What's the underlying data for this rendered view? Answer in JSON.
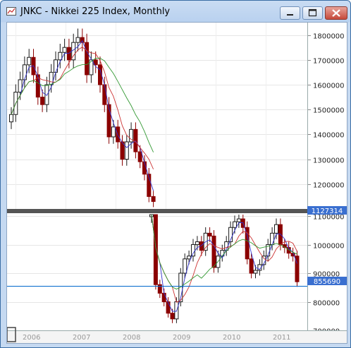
{
  "window": {
    "title": "JNKC - Nikkei 225 Index, Monthly",
    "accent": "#c5d9f1"
  },
  "chart_data": [
    {
      "type": "candlestick",
      "title": "",
      "ylim": [
        1100000,
        1850000
      ],
      "y_ticks": [
        "1800000",
        "1700000",
        "1600000",
        "1500000",
        "1400000",
        "1300000",
        "1200000"
      ],
      "price_marker": "1127314",
      "x_ticks": [
        "2006",
        "2007",
        "2008",
        "2009",
        "2010",
        "2011"
      ],
      "colors": {
        "up": "#1a1a1a",
        "down": "#8b0000",
        "ma_fast": "#3333cc",
        "ma_mid": "#cc3333",
        "ma_slow": "#339933",
        "hline": "#0066cc"
      },
      "candles_close": [
        1480000,
        1570000,
        1620000,
        1680000,
        1710000,
        1640000,
        1550000,
        1520000,
        1600000,
        1650000,
        1700000,
        1730000,
        1750000,
        1700000,
        1770000,
        1790000,
        1770000,
        1640000,
        1700000,
        1680000,
        1600000,
        1520000,
        1390000,
        1430000,
        1370000,
        1300000,
        1370000,
        1420000,
        1330000,
        1290000,
        1240000,
        1150000,
        1130000
      ]
    },
    {
      "type": "candlestick",
      "title": "",
      "ylim": [
        700000,
        1110000
      ],
      "y_ticks": [
        "1100000",
        "1000000",
        "900000",
        "800000",
        "700000"
      ],
      "price_marker": "855690",
      "hline_value": 855690,
      "candles_close": [
        1120000,
        860000,
        830000,
        800000,
        760000,
        740000,
        800000,
        900000,
        950000,
        960000,
        1000000,
        1010000,
        980000,
        1040000,
        1030000,
        920000,
        960000,
        980000,
        1010000,
        1060000,
        1080000,
        1090000,
        1060000,
        950000,
        900000,
        910000,
        930000,
        960000,
        1000000,
        1040000,
        1070000,
        1000000,
        990000,
        970000,
        960000,
        870000
      ]
    }
  ]
}
